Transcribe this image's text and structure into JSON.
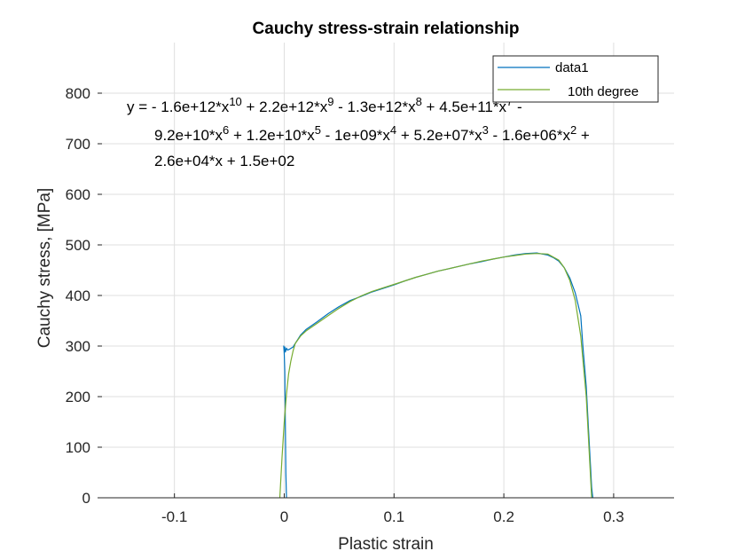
{
  "chart_data": {
    "type": "line",
    "title": "Cauchy stress-strain relationship",
    "xlabel": "Plastic strain",
    "ylabel": "Cauchy stress, [MPa]",
    "xlim": [
      -0.17,
      0.355
    ],
    "ylim": [
      0,
      900
    ],
    "xticks": [
      -0.1,
      0,
      0.1,
      0.2,
      0.3
    ],
    "xtick_labels": [
      "-0.1",
      "0",
      "0.1",
      "0.2",
      "0.3"
    ],
    "yticks": [
      0,
      100,
      200,
      300,
      400,
      500,
      600,
      700,
      800
    ],
    "ytick_labels": [
      "0",
      "100",
      "200",
      "300",
      "400",
      "500",
      "600",
      "700",
      "800"
    ],
    "grid": true,
    "legend_position": "top-right",
    "annotation_lines": [
      "y = - 1.6e+12*x^10 + 2.2e+12*x^9 - 1.3e+12*x^8 + 4.5e+11*x^7 -",
      "9.2e+10*x^6 + 1.2e+10*x^5 - 1e+09*x^4 + 5.2e+07*x^3 - 1.6e+06*x^2 +",
      "2.6e+04*x + 1.5e+02"
    ],
    "series": [
      {
        "name": "data1",
        "color": "#0072BD",
        "x": [
          0.002,
          0.0015,
          0.001,
          0.0005,
          0.0,
          -0.0005,
          0.0,
          0.0005,
          0.001,
          0.002,
          0.003,
          0.005,
          0.008,
          0.01,
          0.015,
          0.02,
          0.03,
          0.04,
          0.05,
          0.06,
          0.07,
          0.08,
          0.09,
          0.1,
          0.11,
          0.12,
          0.13,
          0.14,
          0.15,
          0.16,
          0.17,
          0.18,
          0.19,
          0.2,
          0.21,
          0.22,
          0.23,
          0.235,
          0.24,
          0.245,
          0.25,
          0.255,
          0.26,
          0.265,
          0.27,
          0.272,
          0.275,
          0.277,
          0.279,
          0.28,
          0.281
        ],
        "y": [
          0,
          50,
          150,
          250,
          285,
          300,
          290,
          298,
          288,
          296,
          292,
          294,
          298,
          305,
          322,
          333,
          348,
          364,
          378,
          390,
          398,
          407,
          414,
          421,
          429,
          436,
          442,
          448,
          453,
          458,
          463,
          467,
          472,
          476,
          480,
          483,
          484,
          482,
          480,
          475,
          468,
          455,
          435,
          405,
          360,
          300,
          220,
          140,
          60,
          20,
          0
        ]
      },
      {
        "name": "10th degree",
        "color": "#77AC30",
        "x": [
          -0.004,
          -0.002,
          0.0,
          0.002,
          0.004,
          0.006,
          0.008,
          0.01,
          0.015,
          0.02,
          0.03,
          0.04,
          0.05,
          0.06,
          0.07,
          0.08,
          0.09,
          0.1,
          0.11,
          0.12,
          0.13,
          0.14,
          0.15,
          0.16,
          0.17,
          0.18,
          0.19,
          0.2,
          0.21,
          0.22,
          0.23,
          0.24,
          0.25,
          0.255,
          0.26,
          0.265,
          0.27,
          0.275,
          0.28
        ],
        "y": [
          0,
          80,
          150,
          205,
          245,
          270,
          290,
          305,
          320,
          330,
          345,
          360,
          375,
          388,
          399,
          408,
          415,
          422,
          429,
          436,
          442,
          448,
          453,
          458,
          463,
          468,
          472,
          476,
          479,
          482,
          483,
          482,
          470,
          455,
          430,
          390,
          320,
          200,
          0
        ]
      }
    ]
  }
}
